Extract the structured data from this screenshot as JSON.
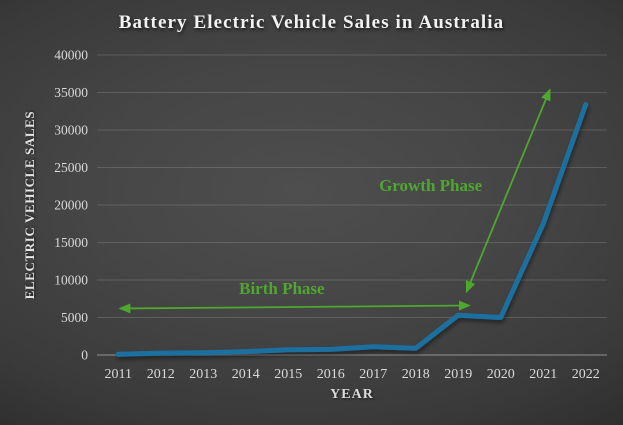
{
  "chart_data": {
    "type": "line",
    "title": "Battery Electric Vehicle Sales in Australia",
    "xlabel": "YEAR",
    "ylabel": "ELECTRIC VEHICLE SALES",
    "categories": [
      "2011",
      "2012",
      "2013",
      "2014",
      "2015",
      "2016",
      "2017",
      "2018",
      "2019",
      "2020",
      "2021",
      "2022"
    ],
    "series": [
      {
        "name": "Battery electric vehicle sales",
        "values": [
          100,
          250,
          300,
          450,
          700,
          750,
          1100,
          900,
          5300,
          5000,
          17500,
          33400
        ]
      }
    ],
    "ylim": [
      0,
      40000
    ],
    "yticks": [
      0,
      5000,
      10000,
      15000,
      20000,
      25000,
      30000,
      35000,
      40000
    ],
    "grid": true,
    "legend": "none",
    "annotations": [
      {
        "id": "birth-phase",
        "label": "Birth Phase",
        "label_x_year": 2014.85,
        "label_y_value": 8950,
        "arrow": {
          "x1_year": 2011.05,
          "y1_value": 6200,
          "x2_year": 2019.25,
          "y2_value": 6600,
          "heads": "both"
        }
      },
      {
        "id": "growth-phase",
        "label": "Growth Phase",
        "label_x_year": 2018.35,
        "label_y_value": 22700,
        "arrow": {
          "x1_year": 2019.2,
          "y1_value": 8500,
          "x2_year": 2021.15,
          "y2_value": 35300,
          "heads": "both"
        }
      }
    ]
  },
  "colors": {
    "line": "#1b6fa0",
    "annotation_green": "#4ea72e",
    "tick_label": "#d9d9d9",
    "gridline": "rgba(255,255,255,0.15)",
    "zero_axis": "rgba(255,255,255,0.30)"
  }
}
